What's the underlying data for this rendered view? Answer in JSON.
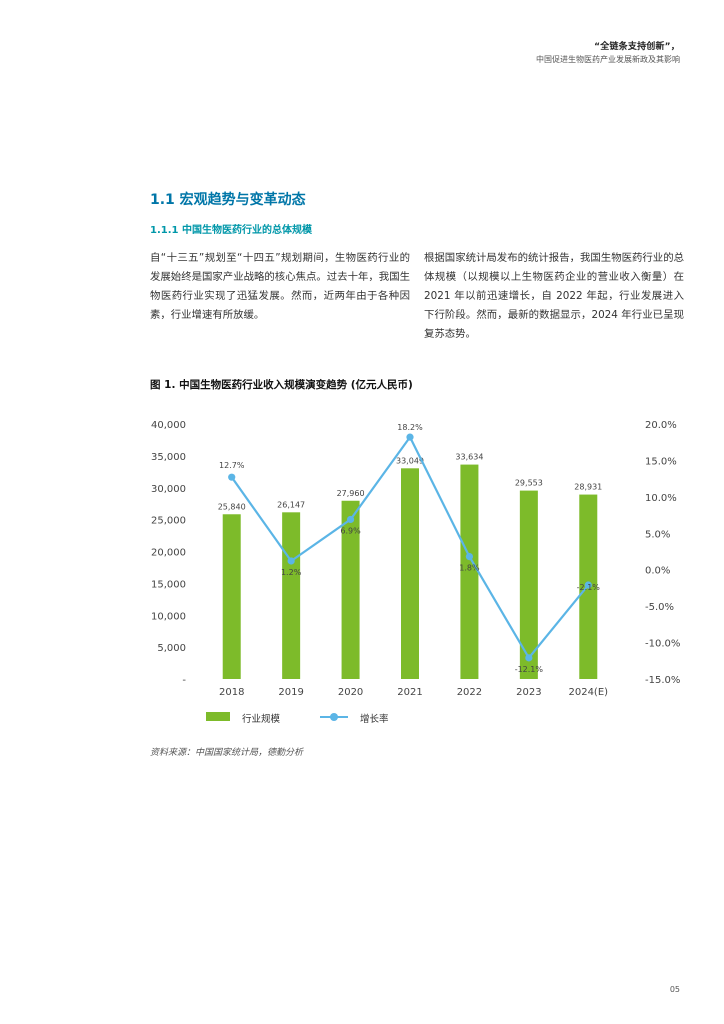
{
  "header": {
    "title": "“全链条支持创新”，",
    "subtitle": "中国促进生物医药产业发展新政及其影响"
  },
  "section": {
    "title": "1.1 宏观趋势与变革动态",
    "subtitle": "1.1.1 中国生物医药行业的总体规模"
  },
  "paragraphs": {
    "left": "自“十三五”规划至“十四五”规划期间，生物医药行业的发展始终是国家产业战略的核心焦点。过去十年，我国生物医药行业实现了迅猛发展。然而，近两年由于各种因素，行业增速有所放缓。",
    "right": "根据国家统计局发布的统计报告，我国生物医药行业的总体规模（以规模以上生物医药企业的营业收入衡量）在 2021 年以前迅速增长，自 2022 年起，行业发展进入下行阶段。然而，最新的数据显示，2024 年行业已呈现复苏态势。"
  },
  "figure": {
    "title": "图 1. 中国生物医药行业收入规模演变趋势 (亿元人民币)",
    "source": "资料来源：中国国家统计局，德勤分析"
  },
  "chart_data": {
    "type": "bar+line",
    "categories": [
      "2018",
      "2019",
      "2020",
      "2021",
      "2022",
      "2023",
      "2024(E)"
    ],
    "series": [
      {
        "name": "行业规模",
        "type": "bar",
        "axis": "left",
        "color": "#7dbb2a",
        "values": [
          25840,
          26147,
          27960,
          33049,
          33634,
          29553,
          28931
        ],
        "labels": [
          "25,840",
          "26,147",
          "27,960",
          "33,049",
          "33,634",
          "29,553",
          "28,931"
        ]
      },
      {
        "name": "增长率",
        "type": "line",
        "axis": "right",
        "color": "#5bb5e6",
        "values": [
          12.7,
          1.2,
          6.9,
          18.2,
          1.8,
          -12.1,
          -2.1
        ],
        "labels": [
          "12.7%",
          "1.2%",
          "6.9%",
          "18.2%",
          "1.8%",
          "-12.1%",
          "-2.1%"
        ]
      }
    ],
    "left_axis": {
      "ylim": [
        0,
        40000
      ],
      "ticks": [
        0,
        5000,
        10000,
        15000,
        20000,
        25000,
        30000,
        35000,
        40000
      ],
      "tick_labels": [
        "-",
        "5,000",
        "10,000",
        "15,000",
        "20,000",
        "25,000",
        "30,000",
        "35,000",
        "40,000"
      ]
    },
    "right_axis": {
      "ylim": [
        -15,
        20
      ],
      "ticks": [
        -15,
        -10,
        -5,
        0,
        5,
        10,
        15,
        20
      ],
      "tick_labels": [
        "-15.0%",
        "-10.0%",
        "-5.0%",
        "0.0%",
        "5.0%",
        "10.0%",
        "15.0%",
        "20.0%"
      ]
    },
    "grid": false,
    "legend": "bottom"
  },
  "page_number": "05"
}
